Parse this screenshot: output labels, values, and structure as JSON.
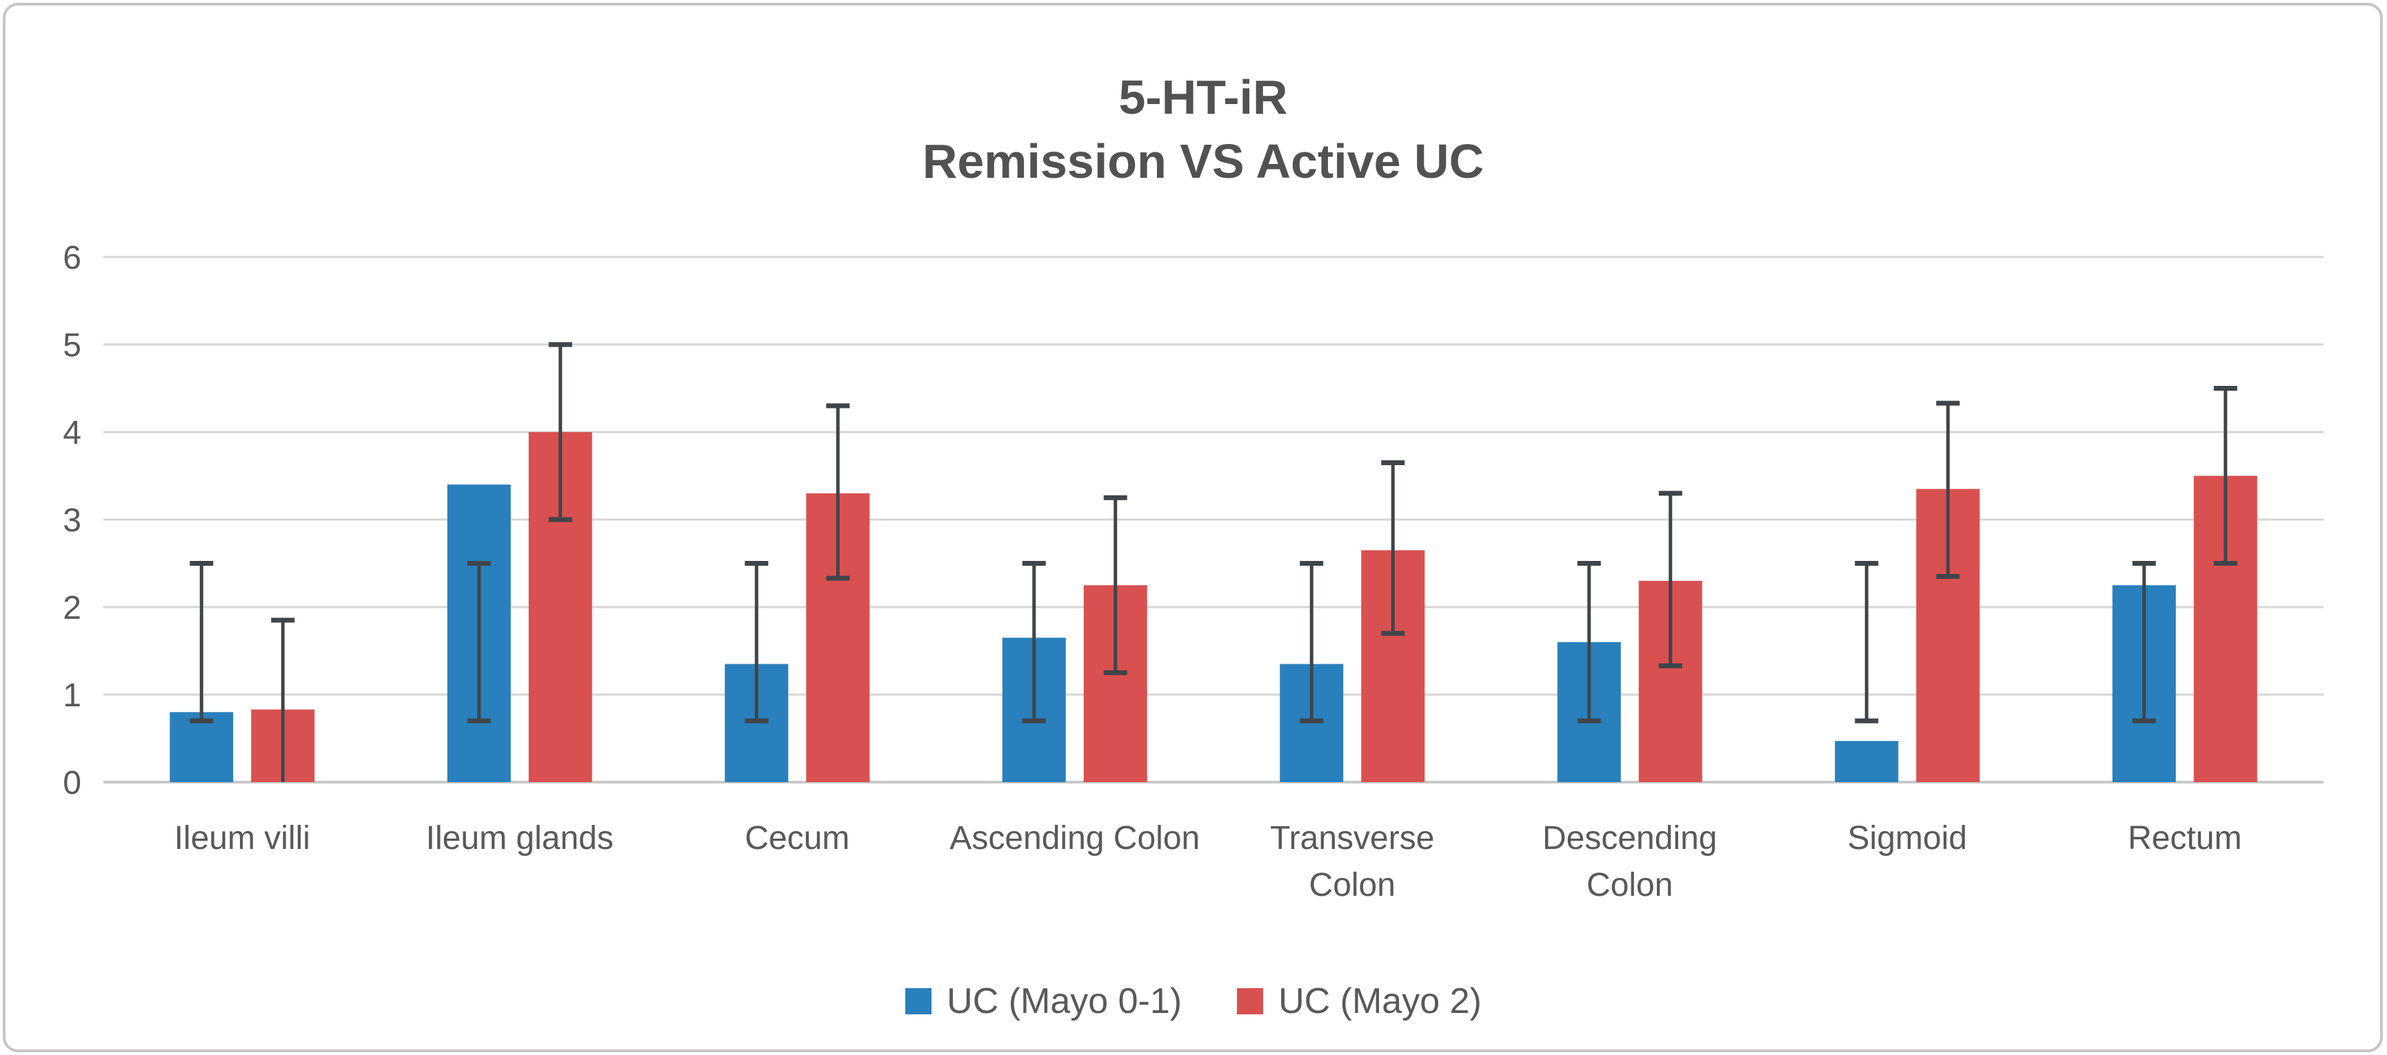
{
  "title": {
    "line1": "5-HT-iR",
    "line2": "Remission VS Active UC"
  },
  "colors": {
    "series_blue": "#2980BC",
    "series_red": "#D95050",
    "error_bar": "#3F454A",
    "gridline": "#D6D6D6",
    "baseline": "#C9C9C9",
    "text": "#595959",
    "title_text": "#525252"
  },
  "chart_data": {
    "type": "bar",
    "title": "5-HT-iR Remission VS Active UC",
    "xlabel": "",
    "ylabel": "",
    "ylim": [
      0,
      6
    ],
    "y_ticks": [
      0,
      1,
      2,
      3,
      4,
      5,
      6
    ],
    "grid": true,
    "legend_position": "bottom",
    "categories": [
      "Ileum villi",
      "Ileum glands",
      "Cecum",
      "Ascending Colon",
      "Transverse Colon",
      "Descending Colon",
      "Sigmoid",
      "Rectum"
    ],
    "category_label_lines": [
      [
        "Ileum villi"
      ],
      [
        "Ileum glands"
      ],
      [
        "Cecum"
      ],
      [
        "Ascending Colon"
      ],
      [
        "Transverse",
        "Colon"
      ],
      [
        "Descending",
        "Colon"
      ],
      [
        "Sigmoid"
      ],
      [
        "Rectum"
      ]
    ],
    "error_bars_note": "error bars show absolute low/high cap positions (range), caps at both ends; low cap omitted when low = 0",
    "series": [
      {
        "name": "UC (Mayo 0-1)",
        "color": "#2980BC",
        "values": [
          0.8,
          3.4,
          1.35,
          1.65,
          1.35,
          1.6,
          0.47,
          2.25
        ],
        "error_low": [
          0.7,
          0.7,
          0.7,
          0.7,
          0.7,
          0.7,
          0.7,
          0.7
        ],
        "error_high": [
          2.5,
          2.5,
          2.5,
          2.5,
          2.5,
          2.5,
          2.5,
          2.5
        ]
      },
      {
        "name": "UC (Mayo 2)",
        "color": "#D95050",
        "values": [
          0.83,
          4.0,
          3.3,
          2.25,
          2.65,
          2.3,
          3.35,
          3.5
        ],
        "error_low": [
          0.0,
          3.0,
          2.33,
          1.25,
          1.7,
          1.33,
          2.35,
          2.5
        ],
        "error_high": [
          1.85,
          5.0,
          4.3,
          3.25,
          3.65,
          3.3,
          4.33,
          4.5
        ]
      }
    ]
  }
}
